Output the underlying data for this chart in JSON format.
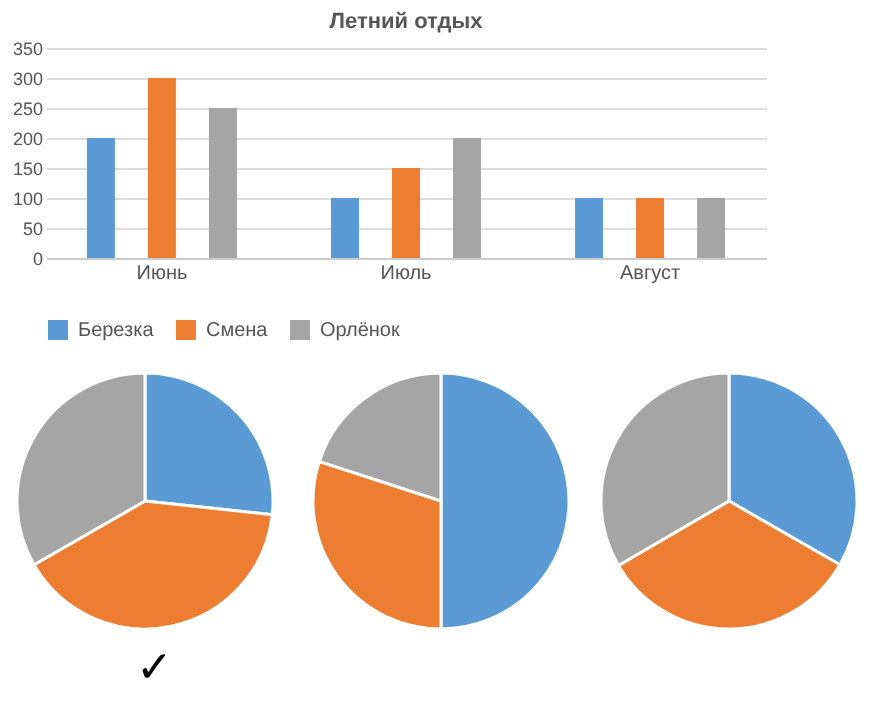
{
  "chart_data": [
    {
      "type": "bar",
      "title": "Летний отдых",
      "categories": [
        "Июнь",
        "Июль",
        "Август"
      ],
      "series": [
        {
          "name": "Березка",
          "color": "#5b9bd5",
          "values": [
            200,
            100,
            100
          ]
        },
        {
          "name": "Смена",
          "color": "#ed7d31",
          "values": [
            300,
            150,
            100
          ]
        },
        {
          "name": "Орлёнок",
          "color": "#a5a5a5",
          "values": [
            250,
            200,
            100
          ]
        }
      ],
      "ylim": [
        0,
        350
      ],
      "yticks": [
        0,
        50,
        100,
        150,
        200,
        250,
        300,
        350
      ],
      "grid": "y",
      "legend": "bottom"
    },
    {
      "type": "pie",
      "categories": [
        null,
        null,
        null
      ],
      "values": [
        26.7,
        40,
        33.3
      ],
      "colors": [
        "#5b9bd5",
        "#ed7d31",
        "#a5a5a5"
      ]
    },
    {
      "type": "pie",
      "categories": [
        null,
        null,
        null
      ],
      "values": [
        50,
        30,
        20
      ],
      "colors": [
        "#5b9bd5",
        "#ed7d31",
        "#a5a5a5"
      ]
    },
    {
      "type": "pie",
      "categories": [
        null,
        null,
        null
      ],
      "values": [
        33.3,
        33.3,
        33.4
      ],
      "colors": [
        "#5b9bd5",
        "#ed7d31",
        "#a5a5a5"
      ],
      "annotations": [
        "✓"
      ]
    }
  ]
}
